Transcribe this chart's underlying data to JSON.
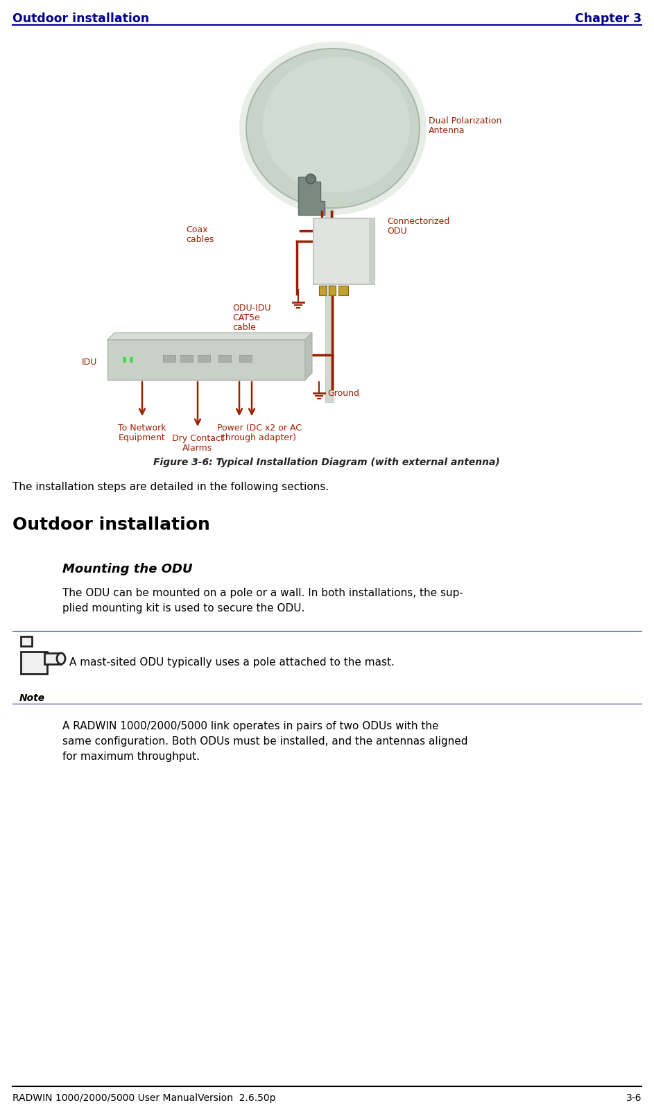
{
  "page_title_left": "Outdoor installation",
  "page_title_right": "Chapter 3",
  "header_color": "#00008B",
  "figure_caption": "Figure 3-6: Typical Installation Diagram (with external antenna)",
  "install_steps_text": "The installation steps are detailed in the following sections.",
  "section_title": "Outdoor installation",
  "subsection_title": "Mounting the ODU",
  "body_text_1_line1": "The ODU can be mounted on a pole or a wall. In both installations, the sup-",
  "body_text_1_line2": "plied mounting kit is used to secure the ODU.",
  "note_text": "A mast-sited ODU typically uses a pole attached to the mast.",
  "note_label": "Note",
  "body_text_2_line1": "A RADWIN 1000/2000/5000 link operates in pairs of two ODUs with the",
  "body_text_2_line2": "same configuration. Both ODUs must be installed, and the antennas aligned",
  "body_text_2_line3": "for maximum throughput.",
  "footer_left": "RADWIN 1000/2000/5000 User ManualVersion  2.6.50p",
  "footer_right": "3-6",
  "label_color": "#9b2000",
  "label_dual_pol_line1": "Dual Polarization",
  "label_dual_pol_line2": "Antenna",
  "label_coax_line1": "Coax",
  "label_coax_line2": "cables",
  "label_connectorized_line1": "Connectorized",
  "label_connectorized_line2": "ODU",
  "label_odu_idu_line1": "ODU-IDU",
  "label_odu_idu_line2": "CAT5e",
  "label_odu_idu_line3": "cable",
  "label_idu": "IDU",
  "label_ground": "Ground",
  "label_network_line1": "To Network",
  "label_network_line2": "Equipment",
  "label_dry_contact_line1": "Dry Contact",
  "label_dry_contact_line2": "Alarms",
  "label_power_line1": "Power (DC x2 or AC",
  "label_power_line2": "through adapter)",
  "bg_color": "#ffffff",
  "line_color": "#9b2000",
  "note_line_color": "#3333aa",
  "diagram_bg": "#ffffff",
  "antenna_fill": "#c8d4c8",
  "antenna_rim": "#ddeedd",
  "antenna_edge": "#aab8aa",
  "bracket_fill": "#7a8a82",
  "odu_fill": "#e0e4e0",
  "odu_edge": "#c0c8c0",
  "idu_fill": "#c8d0c8",
  "idu_edge": "#a8b0a8",
  "pole_fill": "#d0d8d0",
  "conn_fill": "#c0a030",
  "conn_edge": "#906010"
}
